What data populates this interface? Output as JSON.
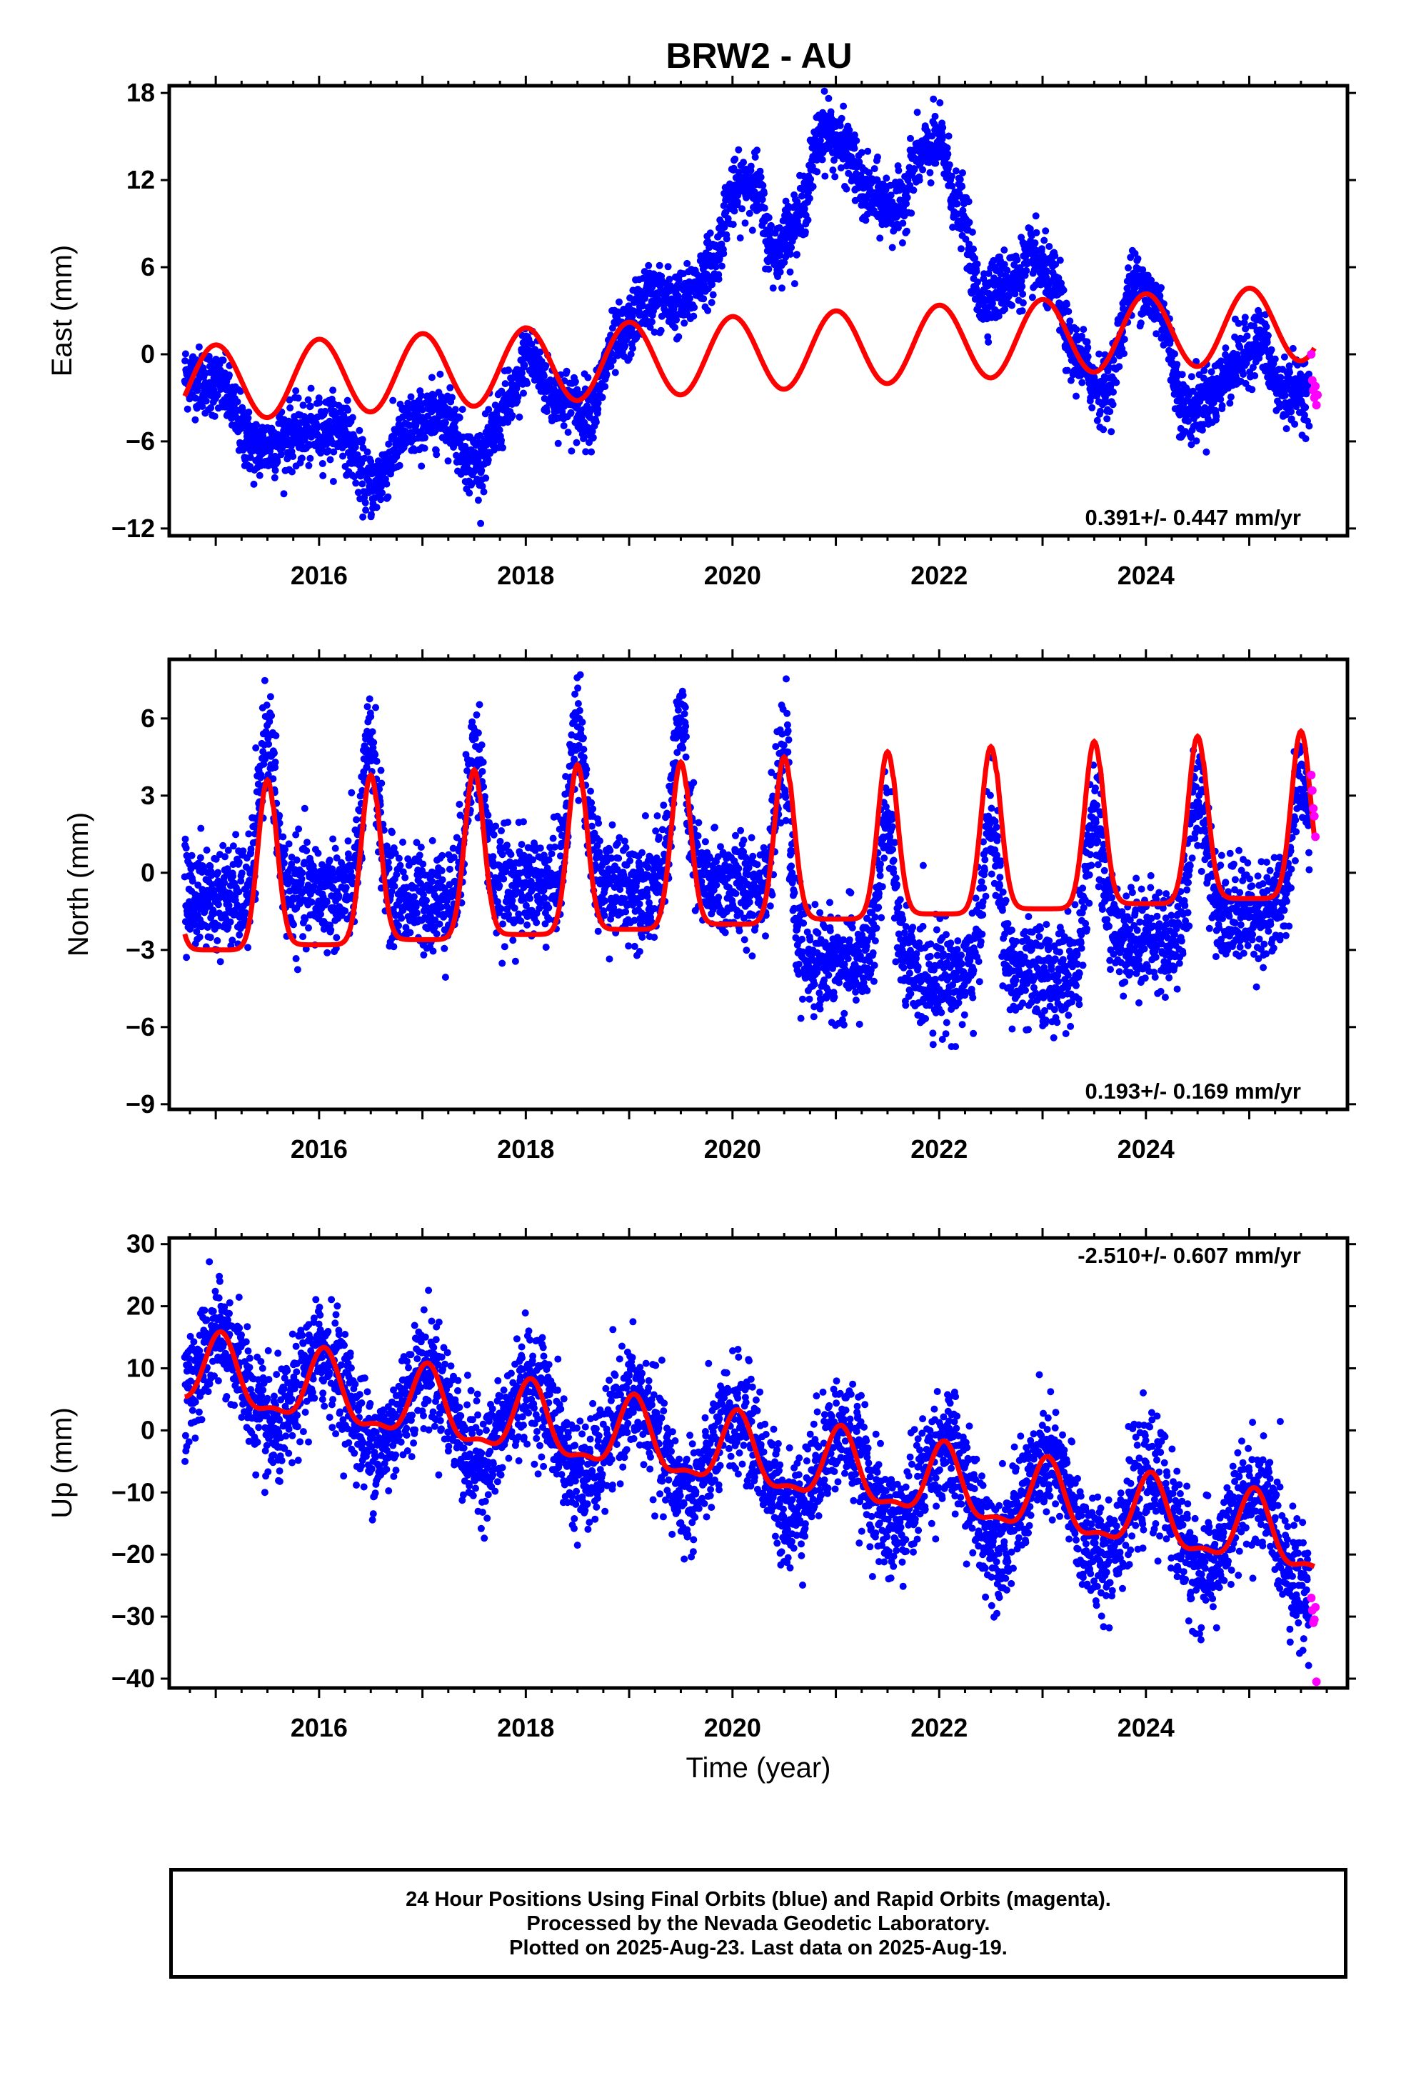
{
  "title": "BRW2 - AU",
  "xlabel": "Time (year)",
  "x_ticks": [
    "2016",
    "2018",
    "2020",
    "2022",
    "2024"
  ],
  "footer": {
    "line1": "24 Hour Positions Using Final Orbits (blue) and Rapid Orbits (magenta).",
    "line2": "Processed by the Nevada Geodetic Laboratory.",
    "line3": "Plotted on 2025-Aug-23. Last data on 2025-Aug-19."
  },
  "colors": {
    "final": "#0000ff",
    "rapid": "#ff00ff",
    "model": "#ff0000"
  },
  "chart_data": [
    {
      "type": "scatter",
      "panel": "east",
      "ylabel": "East (mm)",
      "xlim": [
        2014.55,
        2025.95
      ],
      "ylim": [
        -12.5,
        18.5
      ],
      "y_ticks": [
        "18",
        "12",
        "6",
        "0",
        "-6",
        "-12"
      ],
      "rate_label": "0.391+/- 0.447 mm/yr",
      "rate_position": "bottom-right",
      "x_start": 2014.7,
      "x_end": 2025.63,
      "observed_anchors": {
        "x": [
          2014.7,
          2015.0,
          2015.4,
          2015.8,
          2016.2,
          2016.5,
          2016.9,
          2017.2,
          2017.5,
          2017.9,
          2018.0,
          2018.3,
          2018.6,
          2018.9,
          2019.2,
          2019.5,
          2019.8,
          2020.0,
          2020.2,
          2020.4,
          2020.6,
          2020.9,
          2021.1,
          2021.3,
          2021.6,
          2021.8,
          2022.0,
          2022.2,
          2022.4,
          2022.7,
          2022.9,
          2023.1,
          2023.3,
          2023.6,
          2023.9,
          2024.1,
          2024.4,
          2024.6,
          2024.9,
          2025.1,
          2025.3,
          2025.63
        ],
        "y": [
          -1.5,
          -2.0,
          -6.5,
          -5.5,
          -5.0,
          -9.0,
          -5.0,
          -4.0,
          -7.5,
          -3.0,
          0.0,
          -3.0,
          -4.0,
          1.0,
          4.0,
          3.5,
          6.0,
          11.0,
          12.0,
          7.0,
          9.0,
          15.5,
          14.0,
          11.0,
          10.0,
          13.5,
          14.5,
          10.0,
          4.0,
          5.0,
          6.5,
          5.0,
          0.0,
          -2.5,
          5.0,
          3.5,
          -4.0,
          -3.0,
          -0.5,
          1.0,
          -2.5,
          -2.5
        ]
      },
      "model": {
        "offset": 0.0,
        "rate": 0.391,
        "t0": 2020.0,
        "amplitude": 2.6,
        "annual_phase_year": 0.98,
        "start_value": -2.0
      },
      "rapid_points": {
        "x": [
          2025.6,
          2025.61,
          2025.62,
          2025.63,
          2025.64,
          2025.65,
          2025.66
        ],
        "y": [
          0.0,
          -1.8,
          -2.5,
          -3.0,
          -2.2,
          -3.5,
          -2.8
        ]
      }
    },
    {
      "type": "scatter",
      "panel": "north",
      "ylabel": "North (mm)",
      "xlim": [
        2014.55,
        2025.95
      ],
      "ylim": [
        -9.2,
        8.3
      ],
      "y_ticks": [
        "6",
        "3",
        "0",
        "-3",
        "-6",
        "-9"
      ],
      "rate_label": "0.193+/- 0.169 mm/yr",
      "rate_position": "bottom-right",
      "x_start": 2014.7,
      "x_end": 2025.63,
      "observed": {
        "peak_values": [
          5.5,
          5.0,
          4.8,
          6.0,
          6.0,
          4.5,
          2.0,
          2.0,
          2.0,
          3.0,
          4.0
        ],
        "trough_values": [
          -1.0,
          -0.8,
          -1.0,
          -0.5,
          -0.5,
          -0.5,
          -3.5,
          -4.0,
          -4.0,
          -2.5,
          -1.5
        ]
      },
      "model": {
        "peaks": [
          3.6,
          3.8,
          4.0,
          4.2,
          4.3,
          4.5,
          4.7,
          4.9,
          5.1,
          5.3,
          5.5
        ],
        "troughs": [
          -3.0,
          -2.8,
          -2.6,
          -2.4,
          -2.2,
          -2.0,
          -1.8,
          -1.6,
          -1.4,
          -1.2,
          -1.0
        ]
      },
      "rapid_points": {
        "x": [
          2025.6,
          2025.61,
          2025.62,
          2025.63,
          2025.64
        ],
        "y": [
          3.8,
          3.2,
          2.5,
          2.2,
          1.4
        ]
      }
    },
    {
      "type": "scatter",
      "panel": "up",
      "ylabel": "Up (mm)",
      "xlim": [
        2014.55,
        2025.95
      ],
      "ylim": [
        -41.5,
        31.0
      ],
      "y_ticks": [
        "30",
        "20",
        "10",
        "0",
        "-10",
        "-20",
        "-30",
        "-40"
      ],
      "rate_label": "-2.510+/- 0.607 mm/yr",
      "rate_position": "top-right",
      "x_start": 2014.7,
      "x_end": 2025.63,
      "observed": {
        "trend_at_2015": 8.0,
        "rate": -2.51,
        "annual_amplitude": 7.0,
        "spread": 4.5
      },
      "model": {
        "value_at_2015": 8.5,
        "rate": -2.51,
        "annual_amplitude": 5.5,
        "semi_amplitude": 2.0
      },
      "rapid_points": {
        "x": [
          2025.6,
          2025.61,
          2025.62,
          2025.63,
          2025.64,
          2025.65
        ],
        "y": [
          -27.0,
          -29.0,
          -31.0,
          -30.5,
          -28.5,
          -40.5
        ]
      }
    }
  ]
}
